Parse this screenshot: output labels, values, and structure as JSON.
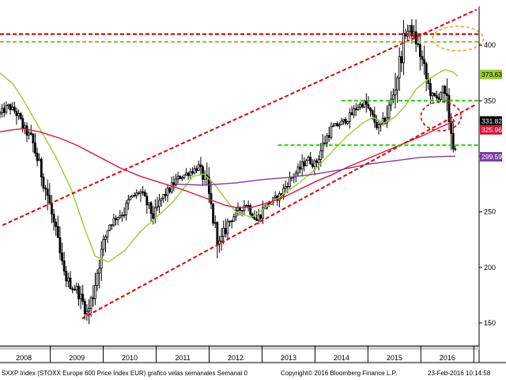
{
  "chart_data": {
    "type": "candlestick",
    "ylim": [
      130,
      435
    ],
    "xlim": [
      2007.55,
      2016.6
    ],
    "y_ticks": [
      150,
      200,
      250,
      300,
      350,
      400
    ],
    "x_ticks": [
      "2008",
      "2009",
      "2010",
      "2011",
      "2012",
      "2013",
      "2014",
      "2015",
      "2016"
    ],
    "price_series": {
      "x": [
        2007.55,
        2007.7,
        2007.85,
        2008.0,
        2008.15,
        2008.3,
        2008.45,
        2008.6,
        2008.75,
        2008.9,
        2009.0,
        2009.1,
        2009.2,
        2009.3,
        2009.4,
        2009.5,
        2009.6,
        2009.75,
        2009.9,
        2010.0,
        2010.2,
        2010.35,
        2010.45,
        2010.6,
        2010.75,
        2010.9,
        2011.1,
        2011.3,
        2011.45,
        2011.6,
        2011.7,
        2011.85,
        2012.0,
        2012.2,
        2012.4,
        2012.55,
        2012.7,
        2012.85,
        2013.0,
        2013.2,
        2013.35,
        2013.5,
        2013.65,
        2013.8,
        2014.0,
        2014.15,
        2014.3,
        2014.45,
        2014.55,
        2014.7,
        2014.85,
        2015.0,
        2015.1,
        2015.2,
        2015.3,
        2015.4,
        2015.5,
        2015.6,
        2015.7,
        2015.8,
        2015.9,
        2016.0,
        2016.1,
        2016.15
      ],
      "y": [
        338,
        345,
        340,
        325,
        315,
        290,
        265,
        230,
        195,
        182,
        180,
        170,
        158,
        175,
        200,
        220,
        238,
        245,
        250,
        262,
        268,
        255,
        245,
        262,
        270,
        280,
        285,
        290,
        275,
        238,
        220,
        240,
        248,
        258,
        242,
        255,
        260,
        265,
        278,
        288,
        298,
        292,
        310,
        325,
        330,
        335,
        345,
        348,
        338,
        325,
        335,
        360,
        385,
        410,
        415,
        405,
        390,
        370,
        355,
        352,
        360,
        345,
        315,
        305
      ]
    },
    "moving_averages": [
      {
        "color": "#9acd32",
        "x": [
          2007.55,
          2007.8,
          2008.0,
          2008.3,
          2008.6,
          2008.9,
          2009.15,
          2009.35,
          2009.6,
          2009.9,
          2010.2,
          2010.5,
          2010.8,
          2011.0,
          2011.2,
          2011.4,
          2011.6,
          2011.8,
          2012.0,
          2012.3,
          2012.6,
          2012.9,
          2013.2,
          2013.5,
          2013.8,
          2014.1,
          2014.4,
          2014.6,
          2014.8,
          2015.0,
          2015.2,
          2015.4,
          2015.6,
          2015.8,
          2015.95,
          2016.1,
          2016.2
        ],
        "y": [
          375,
          365,
          350,
          325,
          300,
          270,
          235,
          210,
          205,
          215,
          232,
          245,
          258,
          270,
          282,
          284,
          275,
          262,
          250,
          245,
          255,
          266,
          276,
          288,
          303,
          318,
          330,
          335,
          330,
          335,
          345,
          360,
          368,
          374,
          378,
          376,
          372
        ]
      },
      {
        "color": "#dc143c",
        "x": [
          2007.55,
          2007.8,
          2008.0,
          2008.3,
          2008.7,
          2009.0,
          2009.4,
          2009.8,
          2010.2,
          2010.6,
          2011.0,
          2011.4,
          2011.8,
          2012.0,
          2012.3,
          2012.6,
          2012.9,
          2013.2,
          2013.5,
          2013.8,
          2014.1,
          2014.4,
          2014.7,
          2015.0,
          2015.3,
          2015.6,
          2015.9,
          2016.1,
          2016.15
        ],
        "y": [
          322,
          324,
          325,
          322,
          316,
          310,
          300,
          290,
          282,
          276,
          270,
          263,
          256,
          254,
          254,
          258,
          263,
          270,
          277,
          283,
          290,
          296,
          302,
          308,
          314,
          320,
          327,
          331,
          332
        ]
      },
      {
        "color": "#7b3fa0",
        "x": [
          2010.85,
          2011.4,
          2012.0,
          2012.5,
          2013.0,
          2013.5,
          2014.0,
          2014.5,
          2015.0,
          2015.5,
          2016.0,
          2016.15
        ],
        "y": [
          275,
          274,
          276,
          279,
          281,
          284,
          288,
          293,
          296,
          299,
          300,
          300
        ]
      }
    ],
    "trendlines": [
      {
        "style": "dashed",
        "color": "#dd0000",
        "x": [
          2007.6,
          2016.55
        ],
        "y": [
          238,
          432
        ]
      },
      {
        "style": "dashed",
        "color": "#dd0000",
        "x": [
          2009.1,
          2016.55
        ],
        "y": [
          154,
          347
        ]
      },
      {
        "style": "dashed",
        "color": "#dd0000",
        "x": [
          2007.55,
          2016.6
        ],
        "y": [
          410,
          410
        ]
      },
      {
        "style": "dashed",
        "color": "#8fbc44",
        "x": [
          2007.55,
          2016.6
        ],
        "y": [
          403,
          403
        ]
      },
      {
        "style": "dashed",
        "color": "#22cc00",
        "x": [
          2014.0,
          2016.6
        ],
        "y": [
          350,
          350
        ]
      },
      {
        "style": "dashed",
        "color": "#22cc00",
        "x": [
          2012.8,
          2016.6
        ],
        "y": [
          310,
          310
        ]
      }
    ],
    "ellipses": [
      {
        "color": "#f5a623",
        "cx": 2016.2,
        "cy": 406,
        "rx_years": 0.48,
        "ry_units": 11
      },
      {
        "color": "#dd0000",
        "cx": 2015.88,
        "cy": 336,
        "rx_years": 0.38,
        "ry_units": 13
      }
    ],
    "badges": [
      {
        "text": "373.63",
        "value": 373.63,
        "bg": "#9acd32",
        "fg": "#000000"
      },
      {
        "text": "331.82",
        "value": 331.82,
        "bg": "#000000",
        "fg": "#ffffff"
      },
      {
        "text": "325.96",
        "value": 325.96,
        "bg": "#dc143c",
        "fg": "#ffffff"
      },
      {
        "text": "299.59",
        "value": 299.59,
        "bg": "#7b3fa0",
        "fg": "#ffffff"
      }
    ],
    "colors": {
      "candle": "#000000",
      "axis_bg": "#ffffff"
    }
  },
  "footer": {
    "left": "SXXP Index (STOXX Europe 600 Price Index EUR) grafico velas semanales  Semanal 0",
    "center": "Copyright© 2016 Bloomberg Finance L.P.",
    "right": "23-Feb-2016 10:14:58"
  }
}
